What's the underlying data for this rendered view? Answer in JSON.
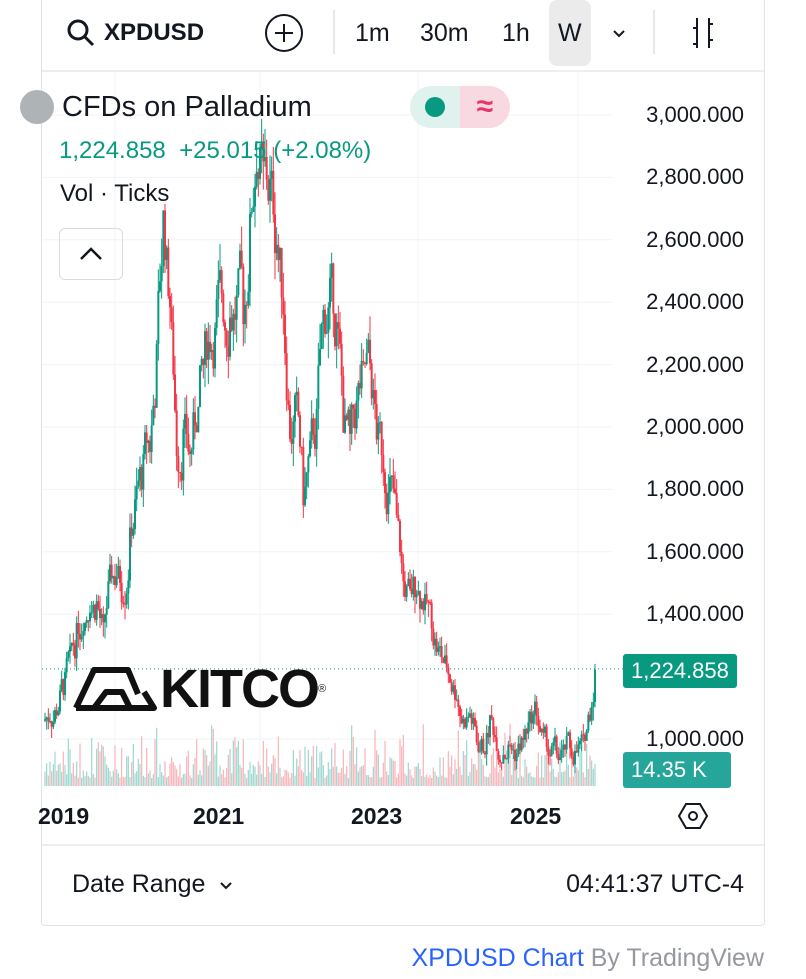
{
  "toolbar": {
    "symbol": "XPDUSD",
    "search_icon": "search-icon",
    "add_icon": "plus-circle-icon",
    "intervals": [
      "1m",
      "30m",
      "1h",
      "W"
    ],
    "active_interval": "W",
    "dropdown_icon": "chevron-down-icon",
    "chart_type_icon": "candles-icon"
  },
  "legend": {
    "title": "CFDs on Palladium",
    "price": "1,224.858",
    "change": "+25.015 (+2.08%)",
    "volume_label": "Vol · Ticks",
    "up_color": "#089981",
    "down_color": "#f23645"
  },
  "watermark": "KITCO",
  "price_badge": "1,224.858",
  "volume_badge": "14.35 K",
  "footer": {
    "date_range": "Date Range",
    "time": "04:41:37 UTC-4"
  },
  "attribution": {
    "link": "XPDUSD Chart",
    "by": "By TradingView"
  },
  "chart_data": {
    "type": "candlestick",
    "interval": "W",
    "y_ticks": [
      "3,000.000",
      "2,800.000",
      "2,600.000",
      "2,400.000",
      "2,200.000",
      "2,000.000",
      "1,800.000",
      "1,600.000",
      "1,400.000",
      "1,000.000"
    ],
    "x_ticks": [
      "2019",
      "2021",
      "2023",
      "2025"
    ],
    "ylim": [
      940,
      3130
    ],
    "last_price": 1224.858,
    "start": "2018-09",
    "monthly_closes": [
      1080,
      1100,
      1180,
      1250,
      1320,
      1400,
      1450,
      1430,
      1330,
      1500,
      1530,
      1480,
      1620,
      1780,
      1850,
      1950,
      2200,
      2650,
      2400,
      1950,
      1950,
      1900,
      2050,
      2200,
      2300,
      2350,
      2400,
      2350,
      2380,
      2400,
      2600,
      2900,
      2800,
      2750,
      2600,
      2400,
      2000,
      2050,
      1800,
      1900,
      2000,
      2350,
      2400,
      2300,
      2050,
      1950,
      2050,
      2150,
      2200,
      2000,
      1900,
      1800,
      1700,
      1500,
      1450,
      1500,
      1450,
      1400,
      1300,
      1250,
      1200,
      1150,
      1050,
      1080,
      1000,
      980,
      1050,
      1000,
      960,
      980,
      950,
      1000,
      1050,
      1100,
      990,
      950,
      960,
      950,
      980,
      960,
      980,
      1100,
      1280,
      1150,
      1225
    ]
  }
}
